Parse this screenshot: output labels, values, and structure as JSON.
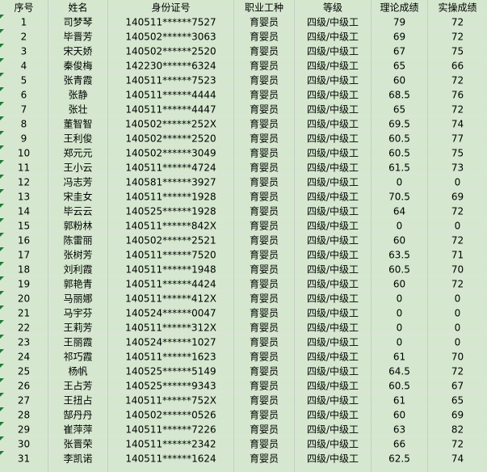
{
  "colors": {
    "cell_background": "#d5e8cf",
    "gridline_vertical": "#c6ccc4",
    "gridline_horizontal": "#dce3d8",
    "error_indicator_green": "#1f7b38",
    "text": "#000000"
  },
  "table": {
    "columns": [
      {
        "key": "index",
        "label": "序号"
      },
      {
        "key": "name",
        "label": "姓名"
      },
      {
        "key": "id",
        "label": "身份证号"
      },
      {
        "key": "occupation",
        "label": "职业工种"
      },
      {
        "key": "level",
        "label": "等级"
      },
      {
        "key": "theory",
        "label": "理论成绩"
      },
      {
        "key": "practical",
        "label": "实操成绩"
      }
    ],
    "rows": [
      {
        "index": 1,
        "name": "司梦琴",
        "id": "140511******7527",
        "occupation": "育婴员",
        "level": "四级/中级工",
        "theory": "79",
        "practical": "72"
      },
      {
        "index": 2,
        "name": "毕晋芳",
        "id": "140502******3063",
        "occupation": "育婴员",
        "level": "四级/中级工",
        "theory": "69",
        "practical": "72"
      },
      {
        "index": 3,
        "name": "宋天娇",
        "id": "140502******2520",
        "occupation": "育婴员",
        "level": "四级/中级工",
        "theory": "67",
        "practical": "75"
      },
      {
        "index": 4,
        "name": "秦俊梅",
        "id": "142230******6324",
        "occupation": "育婴员",
        "level": "四级/中级工",
        "theory": "65",
        "practical": "66"
      },
      {
        "index": 5,
        "name": "张青霞",
        "id": "140511******7523",
        "occupation": "育婴员",
        "level": "四级/中级工",
        "theory": "60",
        "practical": "72"
      },
      {
        "index": 6,
        "name": "张静",
        "id": "140511******4444",
        "occupation": "育婴员",
        "level": "四级/中级工",
        "theory": "68.5",
        "practical": "76"
      },
      {
        "index": 7,
        "name": "张壮",
        "id": "140511******4447",
        "occupation": "育婴员",
        "level": "四级/中级工",
        "theory": "65",
        "practical": "72"
      },
      {
        "index": 8,
        "name": "董智智",
        "id": "140502******252X",
        "occupation": "育婴员",
        "level": "四级/中级工",
        "theory": "69.5",
        "practical": "74"
      },
      {
        "index": 9,
        "name": "王利俊",
        "id": "140502******2520",
        "occupation": "育婴员",
        "level": "四级/中级工",
        "theory": "60.5",
        "practical": "77"
      },
      {
        "index": 10,
        "name": "郑元元",
        "id": "140502******3049",
        "occupation": "育婴员",
        "level": "四级/中级工",
        "theory": "60.5",
        "practical": "75"
      },
      {
        "index": 11,
        "name": "王小云",
        "id": "140511******4724",
        "occupation": "育婴员",
        "level": "四级/中级工",
        "theory": "61.5",
        "practical": "73"
      },
      {
        "index": 12,
        "name": "冯志芳",
        "id": "140581******3927",
        "occupation": "育婴员",
        "level": "四级/中级工",
        "theory": "0",
        "practical": "0"
      },
      {
        "index": 13,
        "name": "宋圭女",
        "id": "140511******1928",
        "occupation": "育婴员",
        "level": "四级/中级工",
        "theory": "70.5",
        "practical": "69"
      },
      {
        "index": 14,
        "name": "毕云云",
        "id": "140525******1928",
        "occupation": "育婴员",
        "level": "四级/中级工",
        "theory": "64",
        "practical": "72"
      },
      {
        "index": 15,
        "name": "郭粉林",
        "id": "140511******842X",
        "occupation": "育婴员",
        "level": "四级/中级工",
        "theory": "0",
        "practical": "0"
      },
      {
        "index": 16,
        "name": "陈雷丽",
        "id": "140502******2521",
        "occupation": "育婴员",
        "level": "四级/中级工",
        "theory": "60",
        "practical": "72"
      },
      {
        "index": 17,
        "name": "张树芳",
        "id": "140511******7520",
        "occupation": "育婴员",
        "level": "四级/中级工",
        "theory": "63.5",
        "practical": "71"
      },
      {
        "index": 18,
        "name": "刘利霞",
        "id": "140511******1948",
        "occupation": "育婴员",
        "level": "四级/中级工",
        "theory": "60.5",
        "practical": "70"
      },
      {
        "index": 19,
        "name": "郭艳青",
        "id": "140511******4424",
        "occupation": "育婴员",
        "level": "四级/中级工",
        "theory": "60",
        "practical": "72"
      },
      {
        "index": 20,
        "name": "马丽娜",
        "id": "140511******412X",
        "occupation": "育婴员",
        "level": "四级/中级工",
        "theory": "0",
        "practical": "0"
      },
      {
        "index": 21,
        "name": "马宇芬",
        "id": "140524******0047",
        "occupation": "育婴员",
        "level": "四级/中级工",
        "theory": "0",
        "practical": "0"
      },
      {
        "index": 22,
        "name": "王莉芳",
        "id": "140511******312X",
        "occupation": "育婴员",
        "level": "四级/中级工",
        "theory": "0",
        "practical": "0"
      },
      {
        "index": 23,
        "name": "王丽霞",
        "id": "140524******1027",
        "occupation": "育婴员",
        "level": "四级/中级工",
        "theory": "0",
        "practical": "0"
      },
      {
        "index": 24,
        "name": "祁巧霞",
        "id": "140511******1623",
        "occupation": "育婴员",
        "level": "四级/中级工",
        "theory": "61",
        "practical": "70"
      },
      {
        "index": 25,
        "name": "杨帆",
        "id": "140525******5149",
        "occupation": "育婴员",
        "level": "四级/中级工",
        "theory": "64.5",
        "practical": "72"
      },
      {
        "index": 26,
        "name": "王占芳",
        "id": "140525******9343",
        "occupation": "育婴员",
        "level": "四级/中级工",
        "theory": "60.5",
        "practical": "67"
      },
      {
        "index": 27,
        "name": "王扭占",
        "id": "140511******752X",
        "occupation": "育婴员",
        "level": "四级/中级工",
        "theory": "61",
        "practical": "65"
      },
      {
        "index": 28,
        "name": "郜丹丹",
        "id": "140502******0526",
        "occupation": "育婴员",
        "level": "四级/中级工",
        "theory": "60",
        "practical": "69"
      },
      {
        "index": 29,
        "name": "崔萍萍",
        "id": "140511******7226",
        "occupation": "育婴员",
        "level": "四级/中级工",
        "theory": "63",
        "practical": "82"
      },
      {
        "index": 30,
        "name": "张晋荣",
        "id": "140511******2342",
        "occupation": "育婴员",
        "level": "四级/中级工",
        "theory": "66",
        "practical": "72"
      },
      {
        "index": 31,
        "name": "李凯诺",
        "id": "140511******1624",
        "occupation": "育婴员",
        "level": "四级/中级工",
        "theory": "62.5",
        "practical": "74"
      }
    ]
  }
}
